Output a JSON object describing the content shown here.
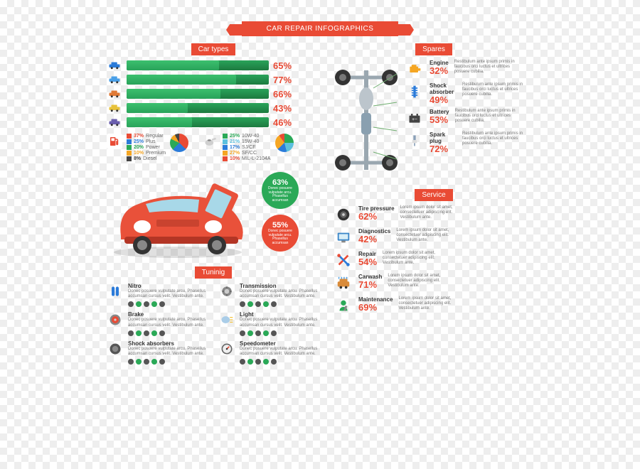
{
  "title": "CAR REPAIR INFOGRAPHICS",
  "colors": {
    "accent": "#e94b35",
    "green_badge": "#2aa957",
    "bar_gradient_top": "#29a35a",
    "bar_gradient_bot": "#1d7a3f"
  },
  "sections": {
    "car_types": {
      "title": "Car types",
      "title_bg": "#e94b35"
    },
    "spares": {
      "title": "Spares",
      "title_bg": "#e94b35"
    },
    "tuning": {
      "title": "Tuninig",
      "title_bg": "#e94b35"
    },
    "service": {
      "title": "Service",
      "title_bg": "#e94b35"
    }
  },
  "car_types_bars": [
    {
      "icon_color": "#2b7bd9",
      "pct": 65,
      "label": "65%"
    },
    {
      "icon_color": "#4aa0e8",
      "pct": 77,
      "label": "77%"
    },
    {
      "icon_color": "#e07a36",
      "pct": 66,
      "label": "66%"
    },
    {
      "icon_color": "#e8c23a",
      "pct": 43,
      "label": "43%"
    },
    {
      "icon_color": "#6b5fae",
      "pct": 46,
      "label": "46%"
    }
  ],
  "fuel_legend": {
    "icon_color": "#e94b35",
    "items": [
      {
        "color": "#e94b35",
        "pct": "37%",
        "label": "Regular"
      },
      {
        "color": "#2b7bd9",
        "pct": "25%",
        "label": "Plus"
      },
      {
        "color": "#2aa957",
        "pct": "20%",
        "label": "Power"
      },
      {
        "color": "#f5a623",
        "pct": "10%",
        "label": "Premium"
      },
      {
        "color": "#444444",
        "pct": "8%",
        "label": "Diesel"
      }
    ],
    "pie_gradient": "conic-gradient(#e94b35 0 37%, #2b7bd9 37% 62%, #2aa957 62% 82%, #f5a623 82% 92%, #444 92% 100%)"
  },
  "oil_legend": {
    "icon_color": "#cfcfcf",
    "items": [
      {
        "color": "#2aa957",
        "pct": "25%",
        "label": "10W-40"
      },
      {
        "color": "#5bc0de",
        "pct": "21%",
        "label": "15W-40"
      },
      {
        "color": "#2b7bd9",
        "pct": "17%",
        "label": "SJ/CF"
      },
      {
        "color": "#f5a623",
        "pct": "27%",
        "label": "SF/CC"
      },
      {
        "color": "#e94b35",
        "pct": "10%",
        "label": "MIL-L-2104A"
      }
    ],
    "pie_gradient": "conic-gradient(#2aa957 0 25%, #5bc0de 25% 46%, #2b7bd9 46% 63%, #f5a623 63% 90%, #e94b35 90% 100%)"
  },
  "badges": [
    {
      "pct": "63%",
      "text": "Donec posuere vulputate arcu. Phasellus accumsan",
      "bg": "#2aa957"
    },
    {
      "pct": "55%",
      "text": "Donec posuere vulputate arcu. Phasellus accumsan",
      "bg": "#e94b35"
    }
  ],
  "spares": [
    {
      "label": "Engine",
      "pct": "32%",
      "desc": "Restibulum ante ipsum primis in faucibus orci luctus et ultrices posuere cubilia.",
      "icon_color": "#f5a623"
    },
    {
      "label": "Shock absorber",
      "pct": "49%",
      "desc": "Restibulum ante ipsum primis in faucibus orci luctus et ultrices posuere cubilia.",
      "icon_color": "#2b7bd9"
    },
    {
      "label": "Battery",
      "pct": "53%",
      "desc": "Restibulum ante ipsum primis in faucibus orci luctus et ultrices posuere cubilia.",
      "icon_color": "#444444"
    },
    {
      "label": "Spark plug",
      "pct": "72%",
      "desc": "Restibulum ante ipsum primis in faucibus orci luctus et ultrices posuere cubilia.",
      "icon_color": "#8aa0b8"
    }
  ],
  "service": [
    {
      "label": "Tire pressure",
      "pct": "62%",
      "desc": "Lorem ipsum dolor sit amet, consectetuer adipiscing elit. Vestibulum ante.",
      "icon_color": "#333333"
    },
    {
      "label": "Diagnostics",
      "pct": "42%",
      "desc": "Lorem ipsum dolor sit amet, consectetuer adipiscing elit. Vestibulum ante.",
      "icon_color": "#3a86c8"
    },
    {
      "label": "Repair",
      "pct": "54%",
      "desc": "Lorem ipsum dolor sit amet, consectetuer adipiscing elit. Vestibulum ante.",
      "icon_color": "#e94b35"
    },
    {
      "label": "Carwash",
      "pct": "71%",
      "desc": "Lorem ipsum dolor sit amet, consectetuer adipiscing elit. Vestibulum ante.",
      "icon_color": "#d98b3a"
    },
    {
      "label": "Maintenance",
      "pct": "69%",
      "desc": "Lorem ipsum dolor sit amet, consectetuer adipiscing elit. Vestibulum ante.",
      "icon_color": "#2aa957"
    }
  ],
  "tuning": [
    {
      "label": "Nitro",
      "desc": "Donec posuere vulputate arcu. Phasellus accumsan cursus velit. Vestibulum ante.",
      "icon_color": "#2b7bd9"
    },
    {
      "label": "Transmission",
      "desc": "Donec posuere vulputate arcu. Phasellus accumsan cursus velit. Vestibulum ante.",
      "icon_color": "#888888"
    },
    {
      "label": "Brake",
      "desc": "Donec posuere vulputate arcu. Phasellus accumsan cursus velit. Vestibulum ante.",
      "icon_color": "#e94b35"
    },
    {
      "label": "Light",
      "desc": "Donec posuere vulputate arcu. Phasellus accumsan cursus velit. Vestibulum ante.",
      "icon_color": "#aacde8"
    },
    {
      "label": "Shock absorbers",
      "desc": "Donec posuere vulputate arcu. Phasellus accumsan cursus velit. Vestibulum ante.",
      "icon_color": "#555555"
    },
    {
      "label": "Speedometer",
      "desc": "Donec posuere vulputate arcu. Phasellus accumsan cursus velit. Vestibulum ante.",
      "icon_color": "#666666"
    }
  ],
  "tuning_dots": [
    "#555",
    "#2aa957",
    "#555",
    "#2aa957",
    "#555"
  ],
  "sport_car_color": "#e9513a"
}
